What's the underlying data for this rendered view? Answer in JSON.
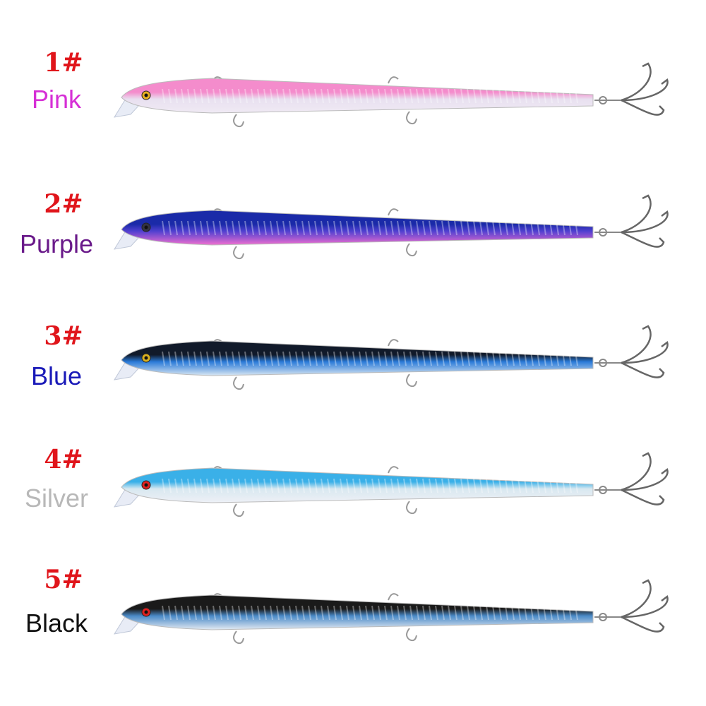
{
  "lures": [
    {
      "number": "1#",
      "name": "Pink",
      "label_color": "#d62fd6",
      "top_color": "#f48ccc",
      "mid_color": "#e8e0f0",
      "belly_color": "#f0eaf4",
      "eye_color": "#e8b020"
    },
    {
      "number": "2#",
      "name": "Purple",
      "label_color": "#6a1a8a",
      "top_color": "#1a2aa8",
      "mid_color": "#5040d0",
      "belly_color": "#f070d0",
      "eye_color": "#333344"
    },
    {
      "number": "3#",
      "name": "Blue",
      "label_color": "#1a1ab8",
      "top_color": "#111a2a",
      "mid_color": "#2a7ad8",
      "belly_color": "#d8e6f2",
      "eye_color": "#d8b020"
    },
    {
      "number": "4#",
      "name": "Silver",
      "label_color": "#b8b8b8",
      "top_color": "#3ab0e8",
      "mid_color": "#d8e8f0",
      "belly_color": "#eef0f6",
      "eye_color": "#e02020"
    },
    {
      "number": "5#",
      "name": "Black",
      "label_color": "#111111",
      "top_color": "#1a1a1a",
      "mid_color": "#4a8ac8",
      "belly_color": "#e4eaf2",
      "eye_color": "#e02020"
    }
  ]
}
